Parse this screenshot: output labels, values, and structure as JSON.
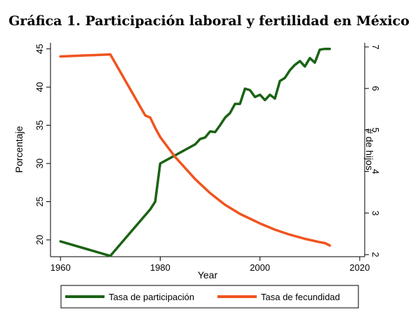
{
  "chart_data": {
    "type": "line",
    "title": "Gráfica 1. Participación laboral y fertilidad en México",
    "xlabel": "Year",
    "ylabel_left": "Porcentaje",
    "ylabel_right": "# de hijos",
    "xlim": [
      1958,
      2021
    ],
    "xticks": [
      1960,
      1980,
      2000,
      2020
    ],
    "ylim_left": [
      17.8,
      45.8
    ],
    "yticks_left": [
      20,
      25,
      30,
      35,
      40,
      45
    ],
    "ylim_right": [
      1.95,
      7.1
    ],
    "yticks_right": [
      2,
      3,
      4,
      5,
      6,
      7
    ],
    "grid": false,
    "legend_position": "bottom",
    "series": [
      {
        "name": "Tasa de participación",
        "axis": "left",
        "color": "#1a6315",
        "x": [
          1960,
          1970,
          1978,
          1979,
          1980,
          1987,
          1988,
          1989,
          1990,
          1991,
          1992,
          1993,
          1994,
          1995,
          1996,
          1997,
          1998,
          1999,
          2000,
          2001,
          2002,
          2003,
          2004,
          2005,
          2006,
          2007,
          2008,
          2009,
          2010,
          2011,
          2012,
          2013,
          2014
        ],
        "values": [
          19.8,
          17.9,
          24.0,
          25.0,
          30.0,
          32.5,
          33.2,
          33.4,
          34.2,
          34.1,
          35.0,
          36.0,
          36.6,
          37.8,
          37.8,
          39.8,
          39.6,
          38.7,
          39.0,
          38.3,
          39.0,
          38.5,
          40.8,
          41.2,
          42.2,
          42.9,
          43.4,
          42.7,
          43.8,
          43.2,
          44.9,
          45.0,
          45.0
        ]
      },
      {
        "name": "Tasa de fecundidad",
        "axis": "right",
        "color": "#f0541f",
        "x": [
          1960,
          1970,
          1977,
          1978,
          1979,
          1980,
          1983,
          1987,
          1990,
          1993,
          1996,
          2000,
          2003,
          2006,
          2009,
          2012,
          2013,
          2014
        ],
        "values": [
          6.77,
          6.82,
          5.35,
          5.3,
          5.05,
          4.83,
          4.35,
          3.82,
          3.48,
          3.2,
          2.98,
          2.75,
          2.6,
          2.48,
          2.38,
          2.3,
          2.28,
          2.22
        ]
      }
    ]
  }
}
